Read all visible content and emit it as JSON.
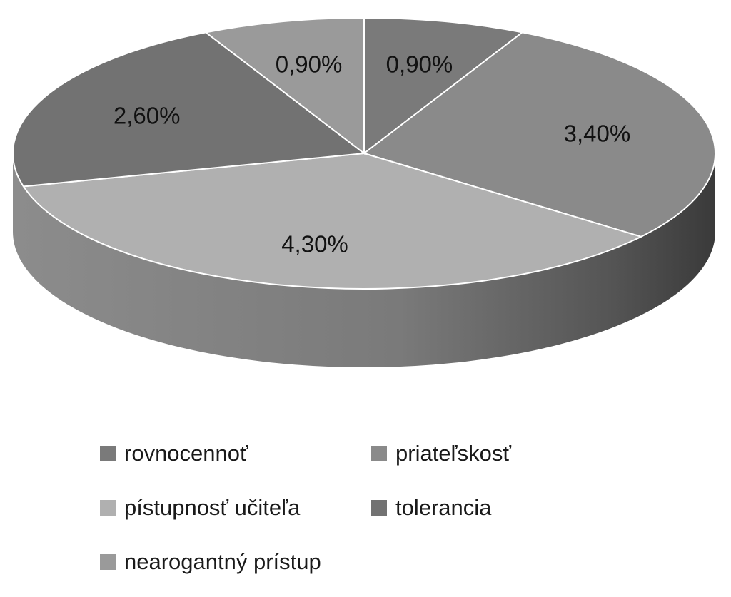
{
  "chart_data": {
    "type": "pie",
    "is_3d": true,
    "title": "",
    "slices": [
      {
        "label": "rovnocennoť",
        "value": 0.9,
        "display": "0,90%",
        "color": "#7a7a7a"
      },
      {
        "label": "priateľskosť",
        "value": 3.4,
        "display": "3,40%",
        "color": "#8a8a8a"
      },
      {
        "label": "pístupnosť učiteľa",
        "value": 4.3,
        "display": "4,30%",
        "color": "#b0b0b0"
      },
      {
        "label": "tolerancia",
        "value": 2.6,
        "display": "2,60%",
        "color": "#727272"
      },
      {
        "label": "nearogantný prístup",
        "value": 0.9,
        "display": "0,90%",
        "color": "#9a9a9a"
      }
    ],
    "legend_position": "bottom",
    "data_labels": true
  }
}
